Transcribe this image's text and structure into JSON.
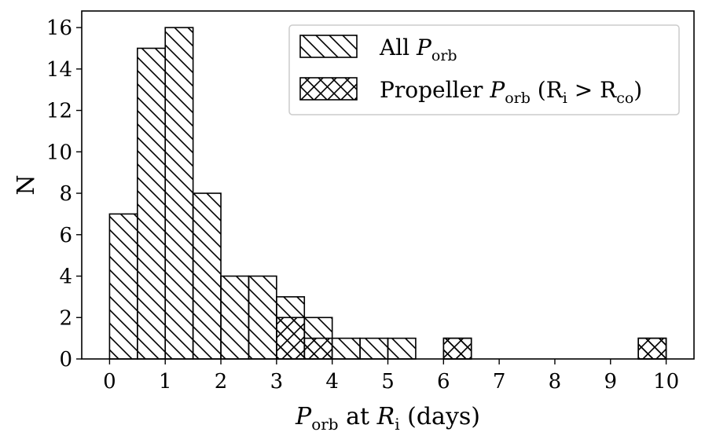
{
  "chart_data": {
    "type": "bar",
    "xlabel": {
      "main": "P",
      "sub": "orb",
      "rest": " at ",
      "main2": "R",
      "sub2": "i",
      "tail": " (days)"
    },
    "ylabel": "N",
    "xlim": [
      -0.5,
      10.5
    ],
    "ylim": [
      0,
      16.8
    ],
    "xticks": [
      0,
      1,
      2,
      3,
      4,
      5,
      6,
      7,
      8,
      9,
      10
    ],
    "yticks": [
      0,
      2,
      4,
      6,
      8,
      10,
      12,
      14,
      16
    ],
    "bin_width": 0.5,
    "series": [
      {
        "name": "All P_orb",
        "hatch": "diagonal",
        "bin_edges": [
          0,
          0.5,
          1,
          1.5,
          2,
          2.5,
          3,
          3.5,
          4,
          4.5,
          5,
          5.5,
          6,
          6.5,
          7,
          7.5,
          8,
          8.5,
          9,
          9.5,
          10
        ],
        "counts": [
          7,
          15,
          16,
          8,
          4,
          4,
          3,
          2,
          1,
          1,
          1,
          0,
          1,
          0,
          0,
          0,
          0,
          0,
          0,
          1
        ]
      },
      {
        "name": "Propeller P_orb (R_i > R_co)",
        "hatch": "crosshatch",
        "bin_edges": [
          0,
          0.5,
          1,
          1.5,
          2,
          2.5,
          3,
          3.5,
          4,
          4.5,
          5,
          5.5,
          6,
          6.5,
          7,
          7.5,
          8,
          8.5,
          9,
          9.5,
          10
        ],
        "counts": [
          0,
          0,
          0,
          0,
          0,
          0,
          2,
          1,
          0,
          0,
          0,
          0,
          1,
          0,
          0,
          0,
          0,
          0,
          0,
          1
        ]
      }
    ],
    "legend": {
      "placement": "top-right",
      "entries": [
        {
          "label_pre": "All ",
          "label_main": "P",
          "label_sub": "orb",
          "label_post": ""
        },
        {
          "label_pre": "Propeller ",
          "label_main": "P",
          "label_sub": "orb",
          "label_post": " (R",
          "label_sub2": "i",
          "label_mid": " > R",
          "label_sub3": "co",
          "label_end": ")"
        }
      ]
    },
    "grid": false
  }
}
